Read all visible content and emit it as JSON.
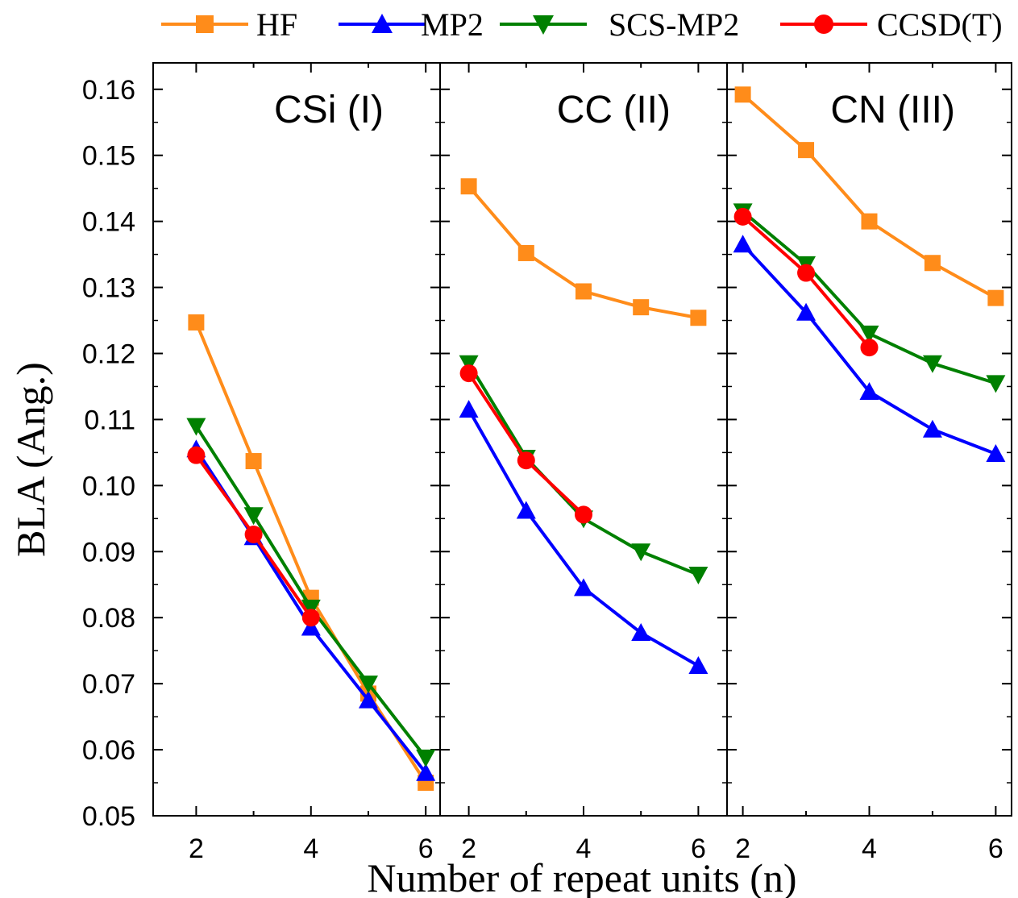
{
  "chart_data": {
    "type": "line",
    "ylabel": "BLA (Ang.)",
    "xlabel": "Number of repeat units (n)",
    "ylim": [
      0.05,
      0.164
    ],
    "yticks": [
      "0.05",
      "0.06",
      "0.07",
      "0.08",
      "0.09",
      "0.10",
      "0.11",
      "0.12",
      "0.13",
      "0.14",
      "0.15",
      "0.16"
    ],
    "legend_position": "top",
    "grid": false,
    "series_styles": [
      {
        "name": "HF",
        "color": "#ff8c1a",
        "marker": "square"
      },
      {
        "name": "MP2",
        "color": "#0000ff",
        "marker": "triangle-up"
      },
      {
        "name": "SCS-MP2",
        "color": "#008000",
        "marker": "triangle-down"
      },
      {
        "name": "CCSD(T)",
        "color": "#ff0000",
        "marker": "circle"
      }
    ],
    "panels": [
      {
        "title": "CSi (I)",
        "xlim": [
          1.25,
          6.25
        ],
        "xticks": [
          "2",
          "4",
          "6"
        ],
        "series": [
          {
            "name": "HF",
            "x": [
              2,
              3,
              4,
              5,
              6
            ],
            "values": [
              0.1247,
              0.1037,
              0.083,
              0.0685,
              0.055
            ]
          },
          {
            "name": "MP2",
            "x": [
              2,
              3,
              4,
              5,
              6
            ],
            "values": [
              0.1055,
              0.0922,
              0.0785,
              0.0675,
              0.0565
            ]
          },
          {
            "name": "SCS-MP2",
            "x": [
              2,
              3,
              4,
              5,
              6
            ],
            "values": [
              0.109,
              0.0955,
              0.0815,
              0.07,
              0.0588
            ]
          },
          {
            "name": "CCSD(T)",
            "x": [
              2,
              3,
              4
            ],
            "values": [
              0.1046,
              0.0926,
              0.08
            ]
          }
        ]
      },
      {
        "title": "CC (II)",
        "xlim": [
          1.5,
          6.5
        ],
        "xticks": [
          "2",
          "4",
          "6"
        ],
        "series": [
          {
            "name": "HF",
            "x": [
              2,
              3,
              4,
              5,
              6
            ],
            "values": [
              0.1453,
              0.1352,
              0.1294,
              0.127,
              0.1254
            ]
          },
          {
            "name": "MP2",
            "x": [
              2,
              3,
              4,
              5,
              6
            ],
            "values": [
              0.1115,
              0.0962,
              0.0845,
              0.0777,
              0.0727
            ]
          },
          {
            "name": "SCS-MP2",
            "x": [
              2,
              3,
              4,
              5,
              6
            ],
            "values": [
              0.1185,
              0.1042,
              0.095,
              0.09,
              0.0865
            ]
          },
          {
            "name": "CCSD(T)",
            "x": [
              2,
              3,
              4
            ],
            "values": [
              0.117,
              0.1038,
              0.0956
            ]
          }
        ]
      },
      {
        "title": "CN (III)",
        "xlim": [
          1.75,
          6.25
        ],
        "xticks": [
          "2",
          "4",
          "6"
        ],
        "series": [
          {
            "name": "HF",
            "x": [
              2,
              3,
              4,
              5,
              6
            ],
            "values": [
              0.1592,
              0.1508,
              0.14,
              0.1337,
              0.1284
            ]
          },
          {
            "name": "MP2",
            "x": [
              2,
              3,
              4,
              5,
              6
            ],
            "values": [
              0.1365,
              0.1262,
              0.1142,
              0.1085,
              0.1048
            ]
          },
          {
            "name": "SCS-MP2",
            "x": [
              2,
              3,
              4,
              5,
              6
            ],
            "values": [
              0.1415,
              0.1335,
              0.123,
              0.1185,
              0.1155
            ]
          },
          {
            "name": "CCSD(T)",
            "x": [
              2,
              3,
              4
            ],
            "values": [
              0.1407,
              0.1322,
              0.1209
            ]
          }
        ]
      }
    ]
  }
}
